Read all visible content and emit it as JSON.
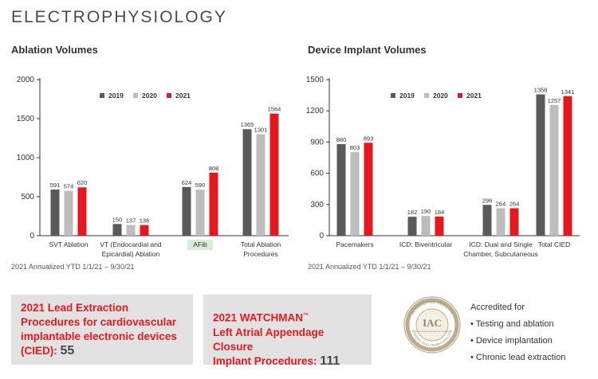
{
  "colors": {
    "y2019": "#5a5a5a",
    "y2020": "#bdbdbd",
    "y2021": "#e4191f",
    "accent": "#e4191f",
    "afib_bg": "#d9ecd7",
    "seal_ring": "#b9ad8e",
    "seal_text": "#8e8466"
  },
  "page": {
    "title": "ELECTROPHYSIOLOGY"
  },
  "ablation": {
    "title": "Ablation Volumes",
    "note": "2021 Annualized YTD 1/1/21 – 9/30/21"
  },
  "implant": {
    "title": "Device Implant Volumes",
    "note": "2021 Annualized YTD 1/1/21 – 9/30/21"
  },
  "chart_data": [
    {
      "type": "bar",
      "title": "Ablation Volumes",
      "categories": [
        "SVT Ablation",
        "VT (Endocardial and Epicardial) Ablation",
        "AFib",
        "Total Ablation Procedures"
      ],
      "category_lines": [
        [
          "SVT Ablation"
        ],
        [
          "VT (Endocardial and",
          "Epicardial) Ablation"
        ],
        [
          "AFib"
        ],
        [
          "Total  Ablation",
          "Procedures"
        ]
      ],
      "highlight_category": "AFib",
      "series": [
        {
          "name": "2019",
          "values": [
            591,
            150,
            624,
            1365
          ]
        },
        {
          "name": "2020",
          "values": [
            574,
            137,
            590,
            1301
          ]
        },
        {
          "name": "2021",
          "values": [
            620,
            136,
            808,
            1564
          ]
        }
      ],
      "ylim": [
        0,
        2000
      ],
      "yticks": [
        "0",
        "500",
        "1000",
        "1500",
        "2000"
      ],
      "legend": "top-center",
      "grid": false
    },
    {
      "type": "bar",
      "title": "Device Implant Volumes",
      "categories": [
        "Pacemakers",
        "ICD: Biventricular",
        "ICD: Dual and Single Chamber, Subcutaneous",
        "Total CIED"
      ],
      "category_lines": [
        [
          "Pacemakers"
        ],
        [
          "ICD: Biventricular"
        ],
        [
          "ICD: Dual and Single",
          "Chamber, Subcutaneous"
        ],
        [
          "Total CIED"
        ]
      ],
      "series": [
        {
          "name": "2019",
          "values": [
            880,
            182,
            296,
            1358
          ]
        },
        {
          "name": "2020",
          "values": [
            803,
            190,
            264,
            1257
          ]
        },
        {
          "name": "2021",
          "values": [
            893,
            184,
            264,
            1341
          ]
        }
      ],
      "ylim": [
        0,
        1500
      ],
      "yticks": [
        "0",
        "300",
        "600",
        "900",
        "1200",
        "1500"
      ],
      "legend": "top-center",
      "grid": false
    }
  ],
  "lead_extraction": {
    "line1": "2021 Lead Extraction",
    "line2": "Procedures for cardiovascular",
    "line3": "implantable electronic devices",
    "line4": "(CIED):",
    "value": "55"
  },
  "watchman": {
    "line1": "2021 WATCHMAN",
    "tm": "™",
    "line2": "Left Atrial Appendage Closure",
    "line3": "Implant Procedures:",
    "value": "111"
  },
  "accreditation": {
    "heading": "Accredited for",
    "items": [
      "• Testing and ablation",
      "• Device implantation",
      "• Chronic lead extraction"
    ],
    "seal": {
      "mark": "IAC",
      "ring_top": "ACCREDITED FACILITY",
      "ring_bottom": "CARDIAC ELECTROPHYSIOLOGY",
      "inner_small": "INTERSOCIETAL ACCREDITATION COMMISSION"
    }
  }
}
